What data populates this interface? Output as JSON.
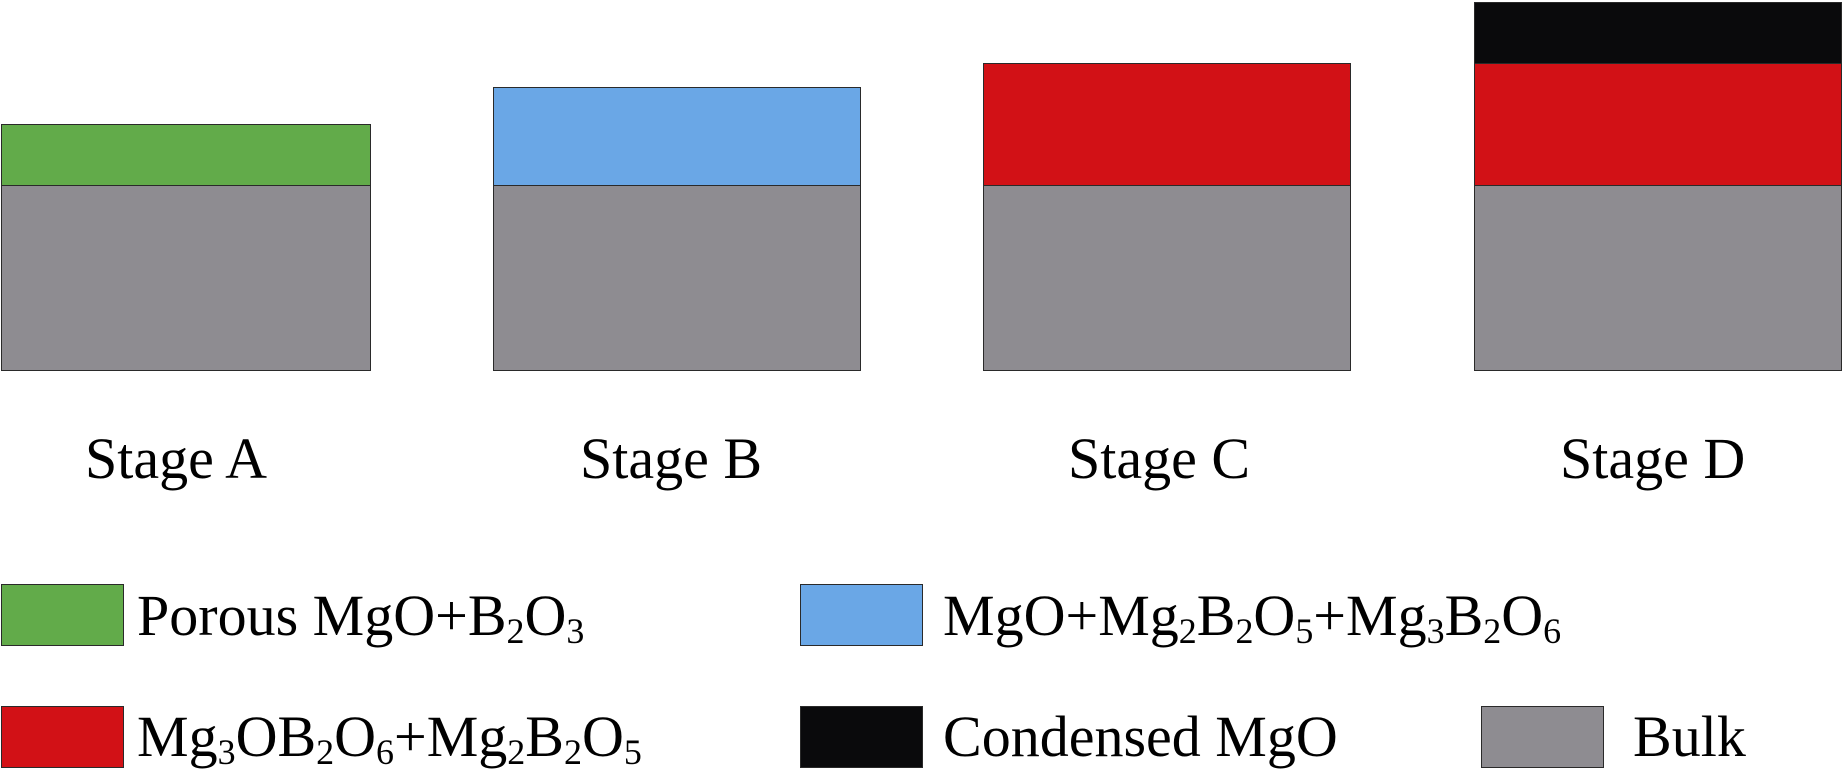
{
  "colors": {
    "porous": "#62ab4a",
    "mixed_borate": "#6aa7e6",
    "mg3ob2o6": "#d21116",
    "condensed": "#0a0a0c",
    "bulk": "#8e8c91"
  },
  "stages": [
    {
      "label": "Stage A",
      "layers": [
        "bulk",
        "porous"
      ]
    },
    {
      "label": "Stage B",
      "layers": [
        "bulk",
        "mixed_borate"
      ]
    },
    {
      "label": "Stage C",
      "layers": [
        "bulk",
        "mg3ob2o6"
      ]
    },
    {
      "label": "Stage D",
      "layers": [
        "bulk",
        "mg3ob2o6",
        "condensed"
      ]
    }
  ],
  "legend": [
    {
      "key": "porous",
      "label": "Porous MgO+B₂O₃"
    },
    {
      "key": "mixed_borate",
      "label": "MgO+Mg₂B₂O₅+Mg₃B₂O₆"
    },
    {
      "key": "mg3ob2o6",
      "label": "Mg₃OB₂O₆+Mg₂B₂O₅"
    },
    {
      "key": "condensed",
      "label": "Condensed MgO"
    },
    {
      "key": "bulk",
      "label": "Bulk"
    }
  ]
}
